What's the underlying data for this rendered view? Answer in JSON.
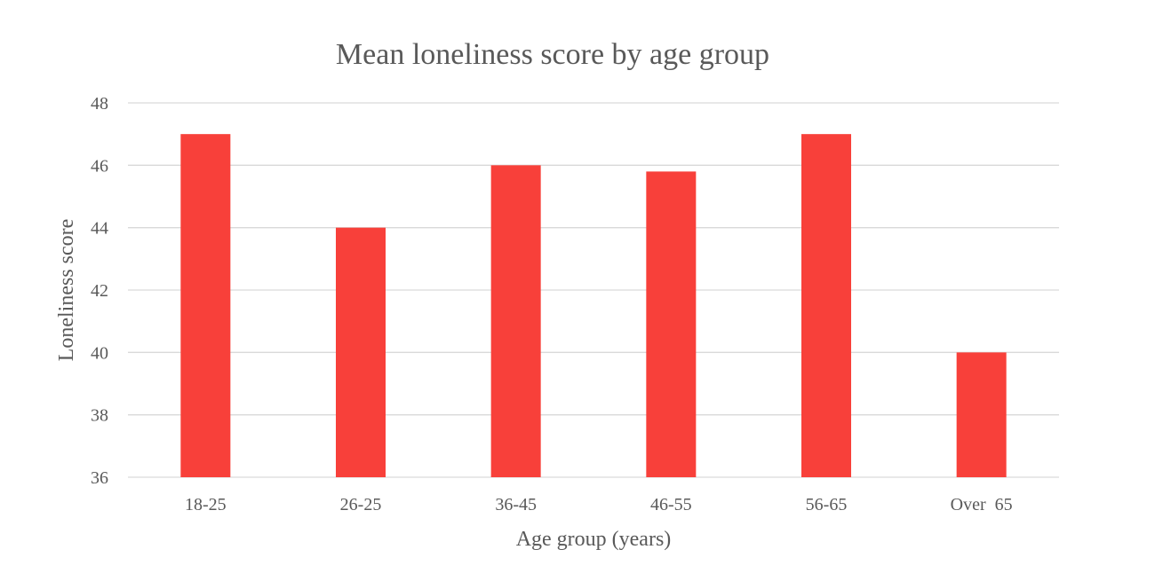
{
  "chart_data": {
    "type": "bar",
    "title": "Mean loneliness score by age group",
    "xlabel": "Age group (years)",
    "ylabel": "Loneliness score",
    "categories": [
      "18-25",
      "26-25",
      "36-45",
      "46-55",
      "56-65",
      "Over  65"
    ],
    "series": [
      {
        "name": "Mean loneliness score",
        "values": [
          47,
          44,
          46,
          45.8,
          47,
          40
        ]
      }
    ],
    "ylim": [
      36,
      48
    ],
    "yticks": [
      36,
      38,
      40,
      42,
      44,
      46,
      48
    ],
    "ytick_labels": [
      "36",
      "38",
      "40",
      "42",
      "44",
      "46",
      "48"
    ],
    "grid": true,
    "legend": "none",
    "colors": {
      "bar": "#f8403a",
      "grid": "#d9d9d9",
      "text": "#595959",
      "background": "#ffffff"
    }
  }
}
